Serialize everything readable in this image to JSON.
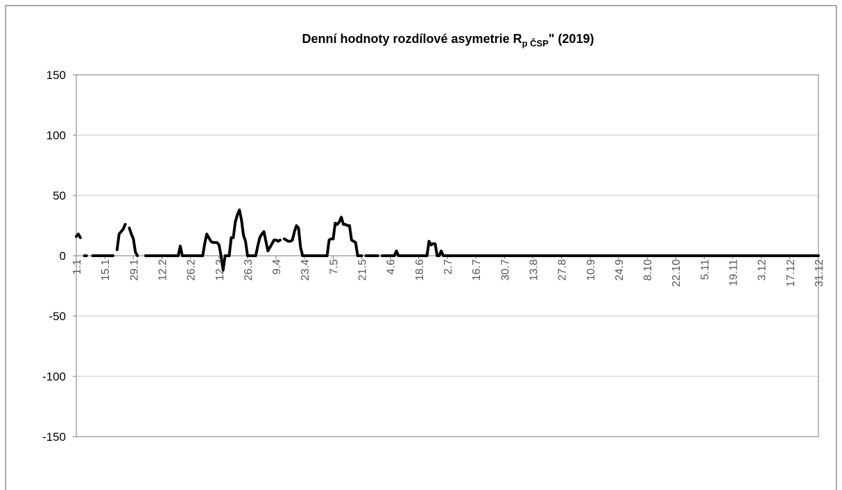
{
  "chart_data": {
    "type": "line",
    "title": "Denní hodnoty rozdílové asymetrie R",
    "title_subscript": "p ČSP",
    "title_suffix": "\" (2019)",
    "categories": [
      "1.1",
      null,
      null,
      null,
      null,
      null,
      null,
      null,
      null,
      null,
      null,
      null,
      null,
      null,
      "15.1",
      null,
      null,
      null,
      null,
      null,
      null,
      null,
      null,
      null,
      null,
      null,
      null,
      null,
      "29.1",
      null,
      null,
      null,
      null,
      null,
      null,
      null,
      null,
      null,
      null,
      null,
      null,
      null,
      "12.2",
      null,
      null,
      null,
      null,
      null,
      null,
      null,
      null,
      null,
      null,
      null,
      null,
      null,
      "26.2",
      null,
      null,
      null,
      null,
      null,
      null,
      null,
      null,
      null,
      null,
      null,
      null,
      null,
      "12.3",
      null,
      null,
      null,
      null,
      null,
      null,
      null,
      null,
      null,
      null,
      null,
      null,
      null,
      "26.3",
      null,
      null,
      null,
      null,
      null,
      null,
      null,
      null,
      null,
      null,
      null,
      null,
      null,
      "9.4",
      null,
      null,
      null,
      null,
      null,
      null,
      null,
      null,
      null,
      null,
      null,
      null,
      null,
      "23.4",
      null,
      null,
      null,
      null,
      null,
      null,
      null,
      null,
      null,
      null,
      null,
      null,
      null,
      "7.5",
      null,
      null,
      null,
      null,
      null,
      null,
      null,
      null,
      null,
      null,
      null,
      null,
      null,
      "21.5",
      null,
      null,
      null,
      null,
      null,
      null,
      null,
      null,
      null,
      null,
      null,
      null,
      null,
      "4.6",
      null,
      null,
      null,
      null,
      null,
      null,
      null,
      null,
      null,
      null,
      null,
      null,
      null,
      "18.6",
      null,
      null,
      null,
      null,
      null,
      null,
      null,
      null,
      null,
      null,
      null,
      null,
      null,
      "2.7",
      null,
      null,
      null,
      null,
      null,
      null,
      null,
      null,
      null,
      null,
      null,
      null,
      null,
      "16.7",
      null,
      null,
      null,
      null,
      null,
      null,
      null,
      null,
      null,
      null,
      null,
      null,
      null,
      "30.7",
      null,
      null,
      null,
      null,
      null,
      null,
      null,
      null,
      null,
      null,
      null,
      null,
      null,
      "13.8",
      null,
      null,
      null,
      null,
      null,
      null,
      null,
      null,
      null,
      null,
      null,
      null,
      null,
      "27.8",
      null,
      null,
      null,
      null,
      null,
      null,
      null,
      null,
      null,
      null,
      null,
      null,
      null,
      "10.9",
      null,
      null,
      null,
      null,
      null,
      null,
      null,
      null,
      null,
      null,
      null,
      null,
      null,
      "24.9",
      null,
      null,
      null,
      null,
      null,
      null,
      null,
      null,
      null,
      null,
      null,
      null,
      null,
      "8.10",
      null,
      null,
      null,
      null,
      null,
      null,
      null,
      null,
      null,
      null,
      null,
      null,
      null,
      "22.10",
      null,
      null,
      null,
      null,
      null,
      null,
      null,
      null,
      null,
      null,
      null,
      null,
      null,
      "5.11",
      null,
      null,
      null,
      null,
      null,
      null,
      null,
      null,
      null,
      null,
      null,
      null,
      null,
      "19.11",
      null,
      null,
      null,
      null,
      null,
      null,
      null,
      null,
      null,
      null,
      null,
      null,
      null,
      "3.12",
      null,
      null,
      null,
      null,
      null,
      null,
      null,
      null,
      null,
      null,
      null,
      null,
      null,
      "17.12",
      null,
      null,
      null,
      null,
      null,
      null,
      null,
      null,
      null,
      null,
      null,
      null,
      null,
      "31.12"
    ],
    "values": [
      16,
      18,
      15,
      null,
      0,
      0,
      null,
      null,
      0,
      0,
      0,
      0,
      0,
      0,
      0,
      0,
      0,
      0,
      0,
      null,
      5,
      18,
      20,
      22,
      26,
      null,
      23,
      18,
      14,
      3,
      0,
      null,
      null,
      null,
      0,
      0,
      0,
      0,
      0,
      0,
      0,
      0,
      0,
      0,
      0,
      0,
      0,
      0,
      0,
      0,
      0,
      8,
      0,
      0,
      0,
      0,
      0,
      0,
      0,
      0,
      0,
      0,
      0,
      10,
      18,
      15,
      12,
      11,
      11,
      11,
      9,
      0,
      -12,
      0,
      0,
      0,
      15,
      15,
      28,
      34,
      38,
      30,
      17,
      12,
      0,
      0,
      0,
      0,
      0,
      8,
      15,
      18,
      20,
      12,
      4,
      7,
      10,
      13,
      13,
      12,
      13,
      null,
      14,
      13,
      12,
      12,
      13,
      20,
      25,
      23,
      7,
      0,
      0,
      0,
      0,
      0,
      0,
      0,
      0,
      0,
      0,
      0,
      0,
      0,
      13,
      14,
      14,
      27,
      26,
      28,
      32,
      26,
      26,
      25,
      25,
      13,
      12,
      11,
      0,
      0,
      0,
      null,
      0,
      0,
      0,
      0,
      0,
      0,
      0,
      null,
      0,
      0,
      0,
      0,
      0,
      0,
      0,
      4,
      0,
      0,
      0,
      0,
      0,
      0,
      0,
      0,
      0,
      0,
      0,
      0,
      0,
      0,
      0,
      12,
      9,
      10,
      10,
      0,
      0,
      4,
      0,
      0,
      0,
      0,
      0,
      0,
      0,
      0,
      0,
      0,
      0,
      0,
      0,
      0,
      0,
      0,
      0,
      0,
      0,
      0,
      0,
      0,
      0,
      0,
      0,
      0,
      0,
      0,
      0,
      0,
      0,
      0,
      0,
      0,
      0,
      0,
      0,
      0,
      0,
      0,
      0,
      0,
      0,
      0,
      0,
      0,
      0,
      0,
      0,
      0,
      0,
      0,
      0,
      0,
      0,
      0,
      0,
      0,
      0,
      0,
      0,
      0,
      0,
      0,
      0,
      0,
      0,
      0,
      0,
      0,
      0,
      0,
      0,
      0,
      0,
      0,
      0,
      0,
      0,
      0,
      0,
      0,
      0,
      0,
      0,
      0,
      0,
      0,
      0,
      0,
      0,
      0,
      0,
      0,
      0,
      0,
      0,
      0,
      0,
      0,
      0,
      0,
      0,
      0,
      0,
      0,
      0,
      0,
      0,
      0,
      0,
      0,
      0,
      0,
      0,
      0,
      0,
      0,
      0,
      0,
      0,
      0,
      0,
      0,
      0,
      0,
      0,
      0,
      0,
      0,
      0,
      0,
      0,
      0,
      0,
      0,
      0,
      0,
      0,
      0,
      0,
      0,
      0,
      0,
      0,
      0,
      0,
      0,
      0,
      0,
      0,
      0,
      0,
      0,
      0,
      0,
      0,
      0,
      0,
      0,
      0,
      0,
      0,
      0,
      0,
      0,
      0,
      0,
      0,
      0,
      0,
      0,
      0,
      0,
      0,
      0,
      0,
      0,
      0,
      0,
      0,
      0,
      0,
      0,
      0
    ],
    "color": "#000000",
    "ylim": [
      -150,
      150
    ],
    "yticks": [
      -150,
      -100,
      -50,
      0,
      50,
      100,
      150
    ],
    "grid": true
  }
}
